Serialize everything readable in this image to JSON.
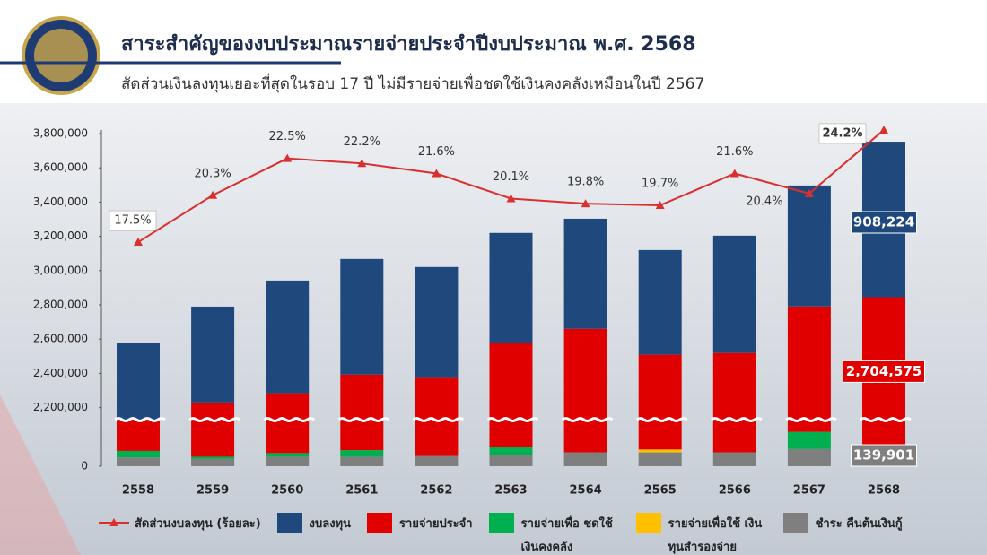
{
  "header": {
    "title": "สาระสำคัญของงบประมาณรายจ่ายประจำปีงบประมาณ พ.ศ. 2568",
    "subtitle": "สัดส่วนเงินลงทุนเยอะที่สุดในรอบ 17 ปี ไม่มีรายจ่ายเพื่อชดใช้เงินคงคลังเหมือนในปี 2567"
  },
  "chart_data": {
    "type": "bar",
    "stacked": true,
    "categories": [
      "2558",
      "2559",
      "2560",
      "2561",
      "2562",
      "2563",
      "2564",
      "2565",
      "2566",
      "2567",
      "2568"
    ],
    "ylim": [
      0,
      3800000
    ],
    "ybreak": [
      320000,
      2130000
    ],
    "yticks": [
      0,
      {
        "value": 2200000,
        "label": "2,200,000"
      },
      {
        "value": 2400000,
        "label": "2,400,000"
      },
      {
        "value": 2600000,
        "label": "2,600,000"
      },
      {
        "value": 2800000,
        "label": "2,800,000"
      },
      {
        "value": 3000000,
        "label": "3,000,000"
      },
      {
        "value": 3200000,
        "label": "3,200,000"
      },
      {
        "value": 3400000,
        "label": "3,400,000"
      },
      {
        "value": 3600000,
        "label": "3,600,000"
      },
      {
        "value": 3800000,
        "label": "3,800,000"
      }
    ],
    "y2lim": [
      6.9,
      25
    ],
    "series": [
      {
        "name": "ชำระ คืนต้นเงินกู้",
        "color": "#7f7f7f",
        "values": [
          60000,
          50000,
          65000,
          65000,
          70000,
          75000,
          95000,
          95000,
          95000,
          118000,
          139901
        ],
        "value_labels": [
          null,
          null,
          null,
          null,
          null,
          null,
          null,
          null,
          null,
          null,
          "139,901"
        ]
      },
      {
        "name": "รายจ่ายเพื่อใช้ เงินทุนสำรองจ่าย",
        "color": "#ffc000",
        "values": [
          0,
          0,
          0,
          0,
          0,
          0,
          0,
          20000,
          0,
          0,
          0
        ]
      },
      {
        "name": "รายจ่ายเพื่อ ชดใช้เงินคงคลัง",
        "color": "#00b050",
        "values": [
          45000,
          15000,
          25000,
          45000,
          0,
          55000,
          0,
          0,
          0,
          118000,
          0
        ]
      },
      {
        "name": "รายจ่ายประจำ",
        "color": "#e00000",
        "values": [
          2020000,
          2165000,
          2194000,
          2283000,
          2303000,
          2446000,
          2565000,
          2394000,
          2424000,
          2555000,
          2704575
        ],
        "value_labels": [
          null,
          null,
          null,
          null,
          null,
          null,
          null,
          null,
          null,
          null,
          "2,704,575"
        ]
      },
      {
        "name": "งบลงทุน",
        "color": "#1f497d",
        "values": [
          450000,
          560000,
          658000,
          675000,
          648000,
          644000,
          643000,
          611000,
          685000,
          706000,
          908224
        ],
        "value_labels": [
          null,
          null,
          null,
          null,
          null,
          null,
          null,
          null,
          null,
          null,
          "908,224"
        ]
      },
      {
        "name": "สัดส่วนงบลงทุน (ร้อยละ)",
        "type": "line",
        "axis": "y2",
        "color": "#d9302f",
        "values": [
          17.5,
          20.3,
          22.5,
          22.2,
          21.6,
          20.1,
          19.8,
          19.7,
          21.6,
          20.4,
          24.2
        ],
        "value_labels": [
          "17.5%",
          "20.3%",
          "22.5%",
          "22.2%",
          "21.6%",
          "20.1%",
          "19.8%",
          "19.7%",
          "21.6%",
          "20.4%",
          "24.2%"
        ]
      }
    ]
  }
}
